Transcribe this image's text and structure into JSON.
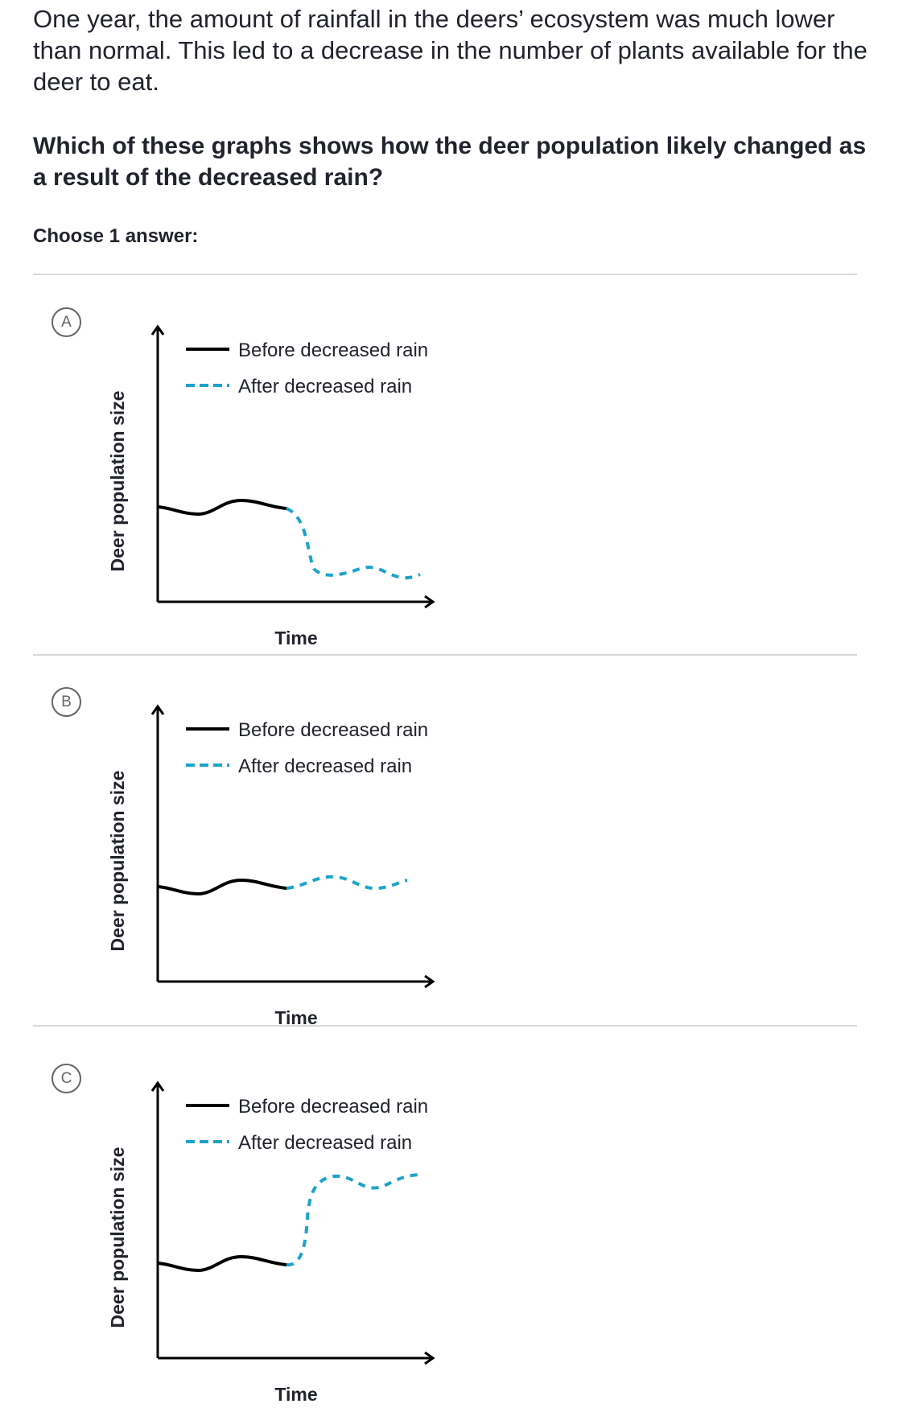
{
  "intro_text": "One year, the amount of rainfall in the deers’ ecosystem was much lower than normal. This led to a decrease in the number of plants available for the deer to eat.",
  "question_text": "Which of these graphs shows how the deer population likely changed as a result of the decreased rain?",
  "choose_label": "Choose 1 answer:",
  "colors": {
    "before_line": "#000000",
    "after_line": "#1ba4c9",
    "divider": "#d6d8da",
    "text": "#21242c"
  },
  "choices": [
    {
      "letter": "A",
      "chart_data": {
        "type": "line",
        "xlabel": "Time",
        "ylabel": "Deer population size",
        "legend": [
          "Before decreased rain",
          "After decreased rain"
        ],
        "series": [
          {
            "name": "Before decreased rain",
            "style": "solid"
          },
          {
            "name": "After decreased rain",
            "style": "dashed",
            "trend": "decrease"
          }
        ]
      }
    },
    {
      "letter": "B",
      "chart_data": {
        "type": "line",
        "xlabel": "Time",
        "ylabel": "Deer population size",
        "legend": [
          "Before decreased rain",
          "After decreased rain"
        ],
        "series": [
          {
            "name": "Before decreased rain",
            "style": "solid"
          },
          {
            "name": "After decreased rain",
            "style": "dashed",
            "trend": "no change"
          }
        ]
      }
    },
    {
      "letter": "C",
      "chart_data": {
        "type": "line",
        "xlabel": "Time",
        "ylabel": "Deer population size",
        "legend": [
          "Before decreased rain",
          "After decreased rain"
        ],
        "series": [
          {
            "name": "Before decreased rain",
            "style": "solid"
          },
          {
            "name": "After decreased rain",
            "style": "dashed",
            "trend": "increase"
          }
        ]
      }
    }
  ]
}
